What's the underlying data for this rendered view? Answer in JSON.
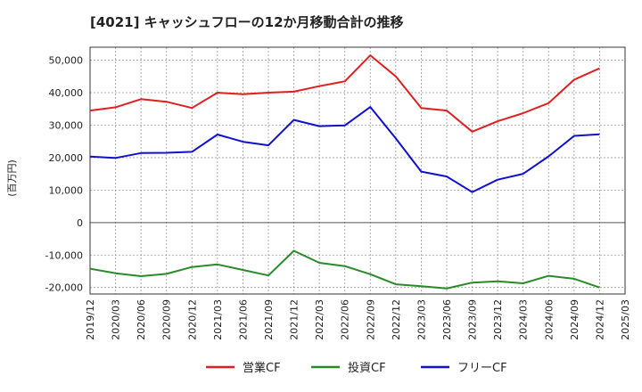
{
  "chart_data": {
    "type": "line",
    "title": "[4021]  キャッシュフローの12か月移動合計の推移",
    "ylabel": "(百万円)",
    "ylim": [
      -22000,
      54000
    ],
    "yticks": [
      -20000,
      -10000,
      0,
      10000,
      20000,
      30000,
      40000,
      50000
    ],
    "ytick_labels": [
      "-20,000",
      "-10,000",
      "0",
      "10,000",
      "20,000",
      "30,000",
      "40,000",
      "50,000"
    ],
    "categories": [
      "2019/12",
      "2020/03",
      "2020/06",
      "2020/09",
      "2020/12",
      "2021/03",
      "2021/06",
      "2021/09",
      "2021/12",
      "2022/03",
      "2022/06",
      "2022/09",
      "2022/12",
      "2023/03",
      "2023/06",
      "2023/09",
      "2023/12",
      "2024/03",
      "2024/06",
      "2024/09",
      "2024/12",
      "2025/03"
    ],
    "series": [
      {
        "name": "営業CF",
        "color": "#e02020",
        "values": [
          34500,
          35500,
          38000,
          37200,
          35300,
          40000,
          39500,
          40000,
          40300,
          42000,
          43500,
          51500,
          45000,
          35300,
          34500,
          28000,
          31200,
          33700,
          36800,
          44000,
          47500,
          null
        ]
      },
      {
        "name": "投資CF",
        "color": "#2a8a2a",
        "values": [
          -14200,
          -15600,
          -16500,
          -15800,
          -13700,
          -12900,
          -14600,
          -16300,
          -8700,
          -12400,
          -13400,
          -15900,
          -19000,
          -19600,
          -20300,
          -18500,
          -18100,
          -18700,
          -16400,
          -17300,
          -20000,
          null
        ]
      },
      {
        "name": "フリーCF",
        "color": "#1010d0",
        "values": [
          20300,
          19900,
          21400,
          21500,
          21800,
          27100,
          24900,
          23800,
          31600,
          29700,
          29900,
          35600,
          25900,
          15700,
          14200,
          9400,
          13200,
          15000,
          20400,
          26700,
          27200,
          null
        ]
      }
    ]
  }
}
